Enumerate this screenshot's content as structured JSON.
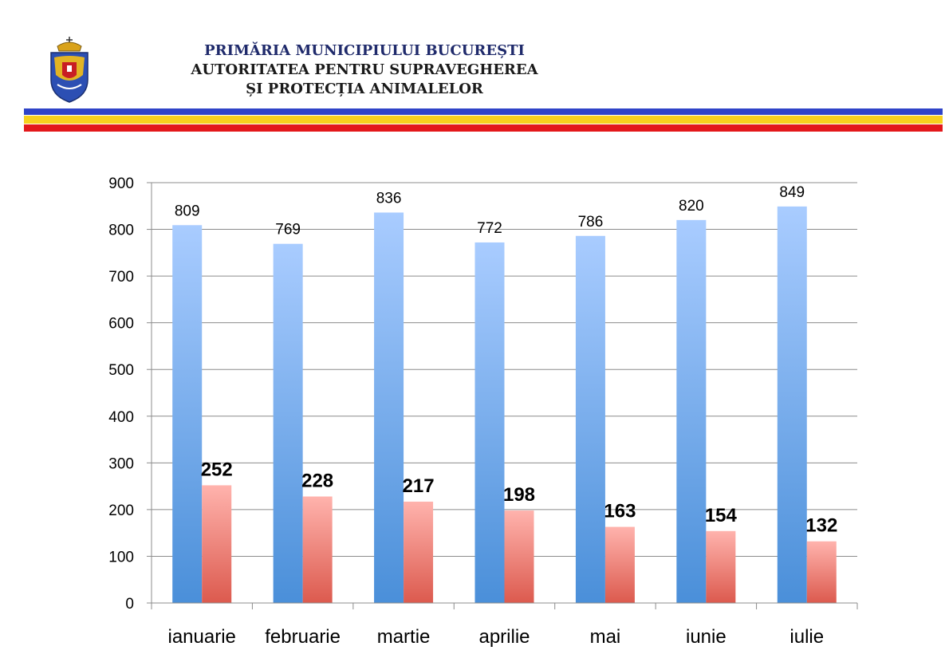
{
  "header": {
    "line1": "PRIMĂRIA MUNICIPIULUI BUCUREȘTI",
    "line2": "AUTORITATEA PENTRU SUPRAVEGHEREA",
    "line3": "ȘI PROTECȚIA ANIMALELOR",
    "crest_icon": "bucharest-coat-of-arms-icon",
    "stripe_colors": [
      "#2f44c8",
      "#f7d11e",
      "#e3181b"
    ]
  },
  "chart_data": {
    "type": "bar",
    "title": "",
    "xlabel": "",
    "ylabel": "",
    "categories": [
      "ianuarie",
      "februarie",
      "martie",
      "aprilie",
      "mai",
      "iunie",
      "iulie"
    ],
    "series": [
      {
        "name": "series-1",
        "values": [
          809,
          769,
          836,
          772,
          786,
          820,
          849
        ],
        "color_top": "#a9ccff",
        "color_bottom": "#4a8fd9",
        "label_bold": false
      },
      {
        "name": "series-2",
        "values": [
          252,
          228,
          217,
          198,
          163,
          154,
          132
        ],
        "color_top": "#ffb3ad",
        "color_bottom": "#dc5a4e",
        "label_bold": true
      }
    ],
    "ylim": [
      0,
      900
    ],
    "yticks": [
      0,
      100,
      200,
      300,
      400,
      500,
      600,
      700,
      800,
      900
    ],
    "grid": true,
    "legend": "none"
  }
}
